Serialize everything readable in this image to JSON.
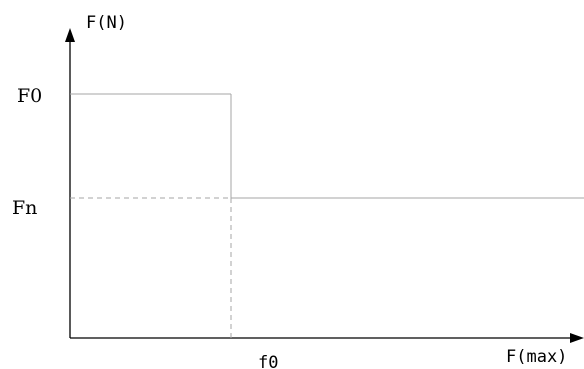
{
  "chart_data": {
    "type": "line",
    "title": "",
    "ylabel": "F(N)",
    "xlabel": "F(max)",
    "grid": false,
    "series": [
      {
        "style": "solid",
        "points": [
          [
            0,
            "F0"
          ],
          [
            "f0",
            "F0"
          ],
          [
            "f0",
            "Fn"
          ],
          [
            "end",
            "Fn"
          ]
        ]
      }
    ],
    "reference_lines": [
      {
        "style": "dashed",
        "from": [
          0,
          "Fn"
        ],
        "to": [
          "f0",
          "Fn"
        ]
      },
      {
        "style": "dashed",
        "from": [
          "f0",
          "Fn"
        ],
        "to": [
          "f0",
          0
        ]
      }
    ],
    "y_ticks": [
      "F0",
      "Fn"
    ],
    "x_ticks": [
      "f0"
    ]
  },
  "colors": {
    "axis": "#000000",
    "curve": "#a6a6a6",
    "dashed": "#a6a6a6"
  }
}
